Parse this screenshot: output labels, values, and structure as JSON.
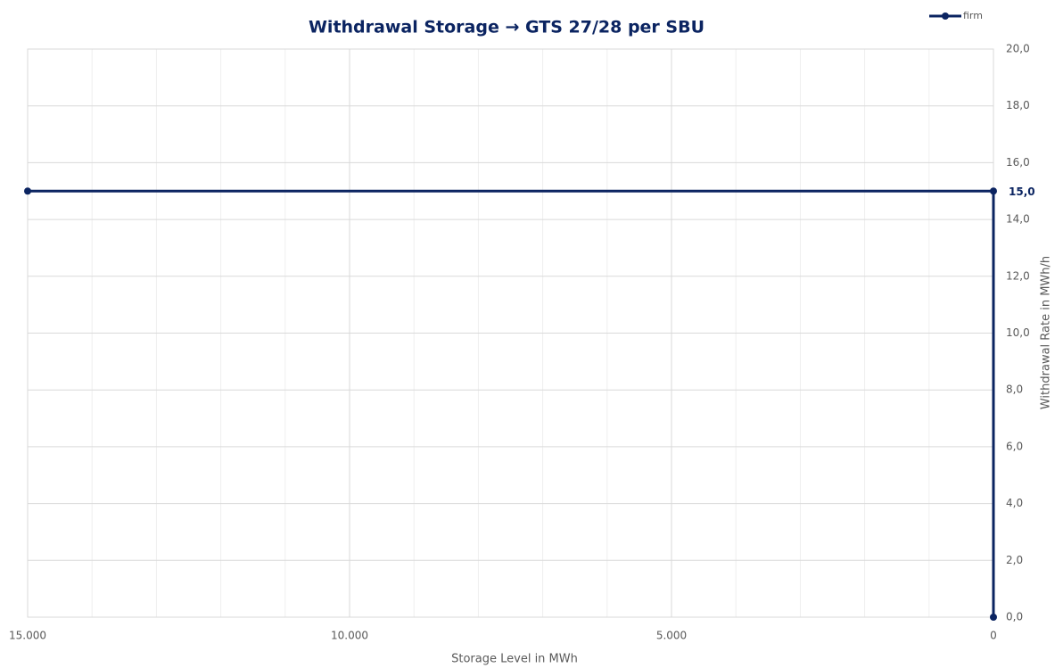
{
  "chart_data": {
    "type": "line",
    "title": "Withdrawal Storage → GTS 27/28 per SBU",
    "x_label": "Storage Level in MWh",
    "y_label": "Withdrawal Rate in MWh/h",
    "x": [
      15000,
      0,
      0
    ],
    "series": [
      {
        "name": "firm",
        "color": "#0b2461",
        "values": [
          15,
          15,
          0
        ],
        "value_labels": [
          null,
          "15,0",
          null
        ]
      }
    ],
    "xlim": [
      15000,
      0
    ],
    "xticks": [
      {
        "value": 15000,
        "label": "15.000"
      },
      {
        "value": 10000,
        "label": "10.000"
      },
      {
        "value": 5000,
        "label": "5.000"
      },
      0
    ],
    "xminorticks": [
      14000,
      13000,
      12000,
      11000,
      9000,
      8000,
      7000,
      6000,
      4000,
      3000,
      2000,
      1000
    ],
    "ylim": [
      0,
      20
    ],
    "yticks": [
      {
        "value": 0,
        "label": "0,0"
      },
      {
        "value": 2,
        "label": "2,0"
      },
      {
        "value": 4,
        "label": "4,0"
      },
      {
        "value": 6,
        "label": "6,0"
      },
      {
        "value": 8,
        "label": "8,0"
      },
      {
        "value": 10,
        "label": "10,0"
      },
      {
        "value": 12,
        "label": "12,0"
      },
      {
        "value": 14,
        "label": "14,0"
      },
      {
        "value": 16,
        "label": "16,0"
      },
      {
        "value": 18,
        "label": "18,0"
      },
      {
        "value": 20,
        "label": "20,0"
      }
    ],
    "grid": true,
    "y_axis_side": "right",
    "legend": "top-right"
  }
}
